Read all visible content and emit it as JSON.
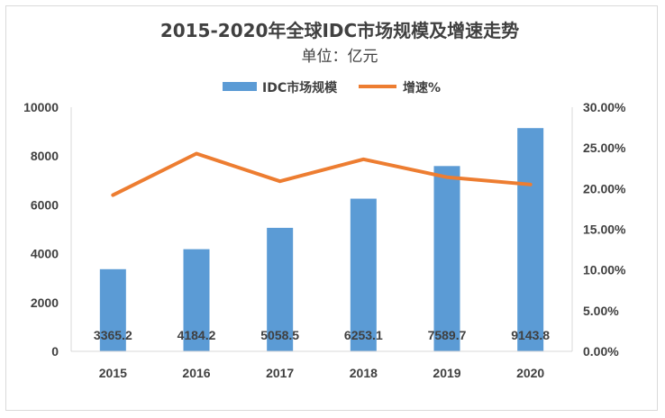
{
  "chart_data": {
    "type": "bar",
    "title": "2015-2020年全球IDC市场规模及增速走势",
    "subtitle": "单位：亿元",
    "categories": [
      "2015",
      "2016",
      "2017",
      "2018",
      "2019",
      "2020"
    ],
    "series": [
      {
        "name": "IDC市场规模",
        "type": "bar",
        "axis": "left",
        "values": [
          3365.2,
          4184.2,
          5058.5,
          6253.1,
          7589.7,
          9143.8
        ],
        "labels": [
          "3365.2",
          "4184.2",
          "5058.5",
          "6253.1",
          "7589.7",
          "9143.8"
        ],
        "color": "#5b9bd5"
      },
      {
        "name": "增速%",
        "type": "line",
        "axis": "right",
        "values": [
          0.192,
          0.243,
          0.209,
          0.236,
          0.214,
          0.205
        ],
        "color": "#ed7d31"
      }
    ],
    "y_left": {
      "min": 0,
      "max": 10000,
      "ticks": [
        "0",
        "2000",
        "4000",
        "6000",
        "8000",
        "10000"
      ]
    },
    "y_right": {
      "min": 0,
      "max": 0.3,
      "ticks": [
        "0.00%",
        "5.00%",
        "10.00%",
        "15.00%",
        "20.00%",
        "25.00%",
        "30.00%"
      ]
    },
    "legend_position": "top",
    "grid": false
  }
}
